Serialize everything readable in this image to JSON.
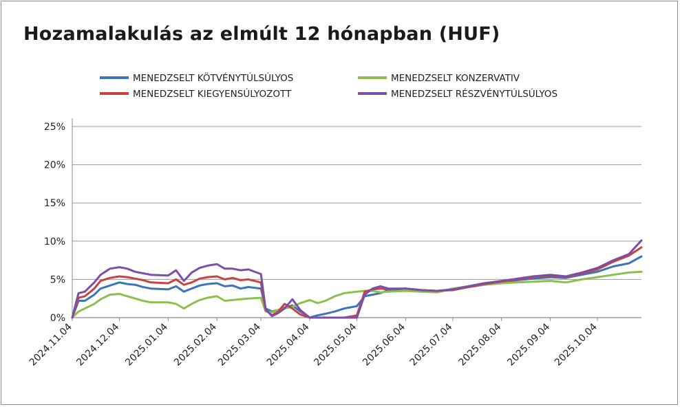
{
  "chart_data": {
    "type": "line",
    "title": "Hozamalakulás az elmúlt 12 hónapban (HUF)",
    "xlabel": "",
    "ylabel": "",
    "ylim": [
      0,
      25
    ],
    "y_ticks": [
      "0%",
      "5%",
      "10%",
      "15%",
      "20%",
      "25%"
    ],
    "x_ticks": [
      "2024.11.04",
      "2024.12.04",
      "2025.01.04",
      "2025.02.04",
      "2025.03.04",
      "2025.04.04",
      "2025.05.04",
      "2025.06.04",
      "2025.07.04",
      "2025.08.04",
      "2025.09.04",
      "2025.10.04"
    ],
    "grid": "horizontal",
    "legend_position": "top",
    "x": [
      "2024.11.04",
      "2024.11.08",
      "2024.11.12",
      "2024.11.18",
      "2024.11.22",
      "2024.11.28",
      "2024.12.04",
      "2024.12.09",
      "2024.12.14",
      "2024.12.19",
      "2024.12.24",
      "2025.01.04",
      "2025.01.09",
      "2025.01.14",
      "2025.01.19",
      "2025.01.24",
      "2025.01.29",
      "2025.02.04",
      "2025.02.09",
      "2025.02.14",
      "2025.02.19",
      "2025.02.24",
      "2025.03.04",
      "2025.03.07",
      "2025.03.11",
      "2025.03.15",
      "2025.03.19",
      "2025.03.24",
      "2025.03.29",
      "2025.04.04",
      "2025.04.09",
      "2025.04.14",
      "2025.04.20",
      "2025.04.26",
      "2025.05.04",
      "2025.05.09",
      "2025.05.14",
      "2025.05.19",
      "2025.05.24",
      "2025.06.04",
      "2025.06.14",
      "2025.06.24",
      "2025.07.04",
      "2025.07.14",
      "2025.07.24",
      "2025.08.04",
      "2025.08.14",
      "2025.08.24",
      "2025.09.04",
      "2025.09.14",
      "2025.09.24",
      "2025.10.04",
      "2025.10.14",
      "2025.10.24",
      "2025.11.01"
    ],
    "series": [
      {
        "name": "MENEDZSELT KÖTVÉNYTÚLSÚLYOS",
        "color": "#3b74b8",
        "values": [
          0,
          2.2,
          2.2,
          3.0,
          3.8,
          4.2,
          4.6,
          4.4,
          4.3,
          4.0,
          3.8,
          3.7,
          4.1,
          3.4,
          3.8,
          4.2,
          4.4,
          4.5,
          4.1,
          4.2,
          3.8,
          4.0,
          3.8,
          1.2,
          0.8,
          1.0,
          1.3,
          1.6,
          0.8,
          0,
          0.3,
          0.5,
          0.8,
          1.2,
          1.5,
          2.8,
          3.0,
          3.2,
          3.6,
          3.8,
          3.6,
          3.5,
          3.7,
          4.0,
          4.3,
          4.6,
          4.9,
          5.1,
          5.3,
          5.2,
          5.6,
          6.0,
          6.7,
          7.1,
          8.0
        ]
      },
      {
        "name": "MENEDZSELT KONZERVATIV",
        "color": "#8dbf4d",
        "values": [
          0,
          0.8,
          1.2,
          1.8,
          2.4,
          3.0,
          3.1,
          2.8,
          2.5,
          2.2,
          2.0,
          2.0,
          1.8,
          1.2,
          1.8,
          2.3,
          2.6,
          2.8,
          2.2,
          2.3,
          2.4,
          2.5,
          2.6,
          0.8,
          0.7,
          1.0,
          1.2,
          1.4,
          1.9,
          2.3,
          1.9,
          2.2,
          2.8,
          3.2,
          3.4,
          3.5,
          3.5,
          3.3,
          3.4,
          3.5,
          3.4,
          3.3,
          3.8,
          4.1,
          4.3,
          4.5,
          4.6,
          4.7,
          4.8,
          4.6,
          5.0,
          5.3,
          5.6,
          5.9,
          6.0
        ]
      },
      {
        "name": "MENEDZSELT KIEGYENSÚLYOZOTT",
        "color": "#c94240",
        "values": [
          0,
          2.6,
          2.8,
          3.8,
          4.8,
          5.2,
          5.4,
          5.3,
          5.1,
          4.9,
          4.6,
          4.5,
          5.0,
          4.3,
          4.6,
          5.1,
          5.3,
          5.4,
          5.0,
          5.2,
          4.9,
          5.0,
          4.6,
          1.0,
          0.3,
          0.8,
          1.8,
          1.2,
          0.4,
          0,
          0,
          0,
          0,
          0,
          0.3,
          3.4,
          3.7,
          3.8,
          3.7,
          3.8,
          3.6,
          3.5,
          3.6,
          4.0,
          4.4,
          4.7,
          5.0,
          5.3,
          5.5,
          5.3,
          5.8,
          6.3,
          7.3,
          8.1,
          9.2
        ]
      },
      {
        "name": "MENEDZSELT RÉSZVÉNYTÚLSÚLYOS",
        "color": "#7b4fa6",
        "values": [
          0,
          3.2,
          3.4,
          4.6,
          5.6,
          6.4,
          6.6,
          6.4,
          6.0,
          5.8,
          5.6,
          5.5,
          6.2,
          4.8,
          5.9,
          6.5,
          6.8,
          7.0,
          6.4,
          6.4,
          6.2,
          6.3,
          5.7,
          1.1,
          0.2,
          0.6,
          1.2,
          2.4,
          1.0,
          0,
          0,
          0,
          0,
          0,
          0,
          3.0,
          3.8,
          4.1,
          3.8,
          3.8,
          3.6,
          3.5,
          3.7,
          4.1,
          4.5,
          4.8,
          5.1,
          5.4,
          5.6,
          5.4,
          5.9,
          6.5,
          7.5,
          8.3,
          10.1
        ]
      }
    ]
  }
}
